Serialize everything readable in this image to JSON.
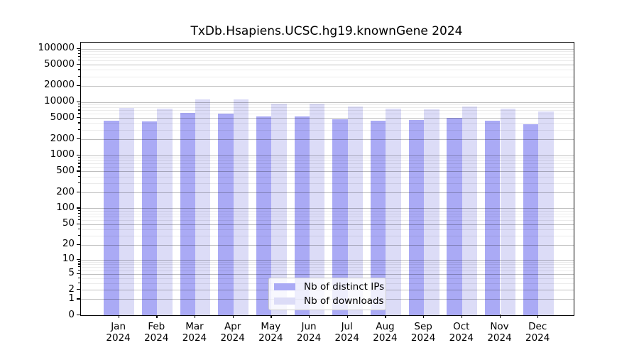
{
  "chart_data": {
    "type": "bar",
    "title": "TxDb.Hsapiens.UCSC.hg19.knownGene 2024",
    "scale": "log1p",
    "grid": "horizontal",
    "legend_position": "bottom-center",
    "categories": [
      "Jan 2024",
      "Feb 2024",
      "Mar 2024",
      "Apr 2024",
      "May 2024",
      "Jun 2024",
      "Jul 2024",
      "Aug 2024",
      "Sep 2024",
      "Oct 2024",
      "Nov 2024",
      "Dec 2024"
    ],
    "series": [
      {
        "name": "Nb of distinct IPs",
        "color": "#aaaaf5",
        "values": [
          4500,
          4300,
          6300,
          6000,
          5400,
          5300,
          4700,
          4400,
          4600,
          5000,
          4500,
          3800
        ]
      },
      {
        "name": "Nb of downloads",
        "color": "#dcdcf7",
        "values": [
          7800,
          7500,
          11200,
          11000,
          9200,
          9200,
          8100,
          7500,
          7200,
          8100,
          7500,
          6700
        ]
      }
    ],
    "y_ticks": [
      0,
      1,
      2,
      5,
      10,
      20,
      50,
      100,
      200,
      500,
      1000,
      2000,
      5000,
      10000,
      20000,
      50000,
      100000
    ],
    "ylim": [
      0,
      100000
    ],
    "xlabel": "",
    "ylabel": ""
  },
  "colors": {
    "bar_dark": "#aaaaf5",
    "bar_light": "#dcdcf7",
    "grid_major": "rgba(0,0,0,0.25)",
    "grid_minor": "rgba(0,0,0,0.08)",
    "frame": "#000000",
    "legend_border": "#cccccc"
  }
}
